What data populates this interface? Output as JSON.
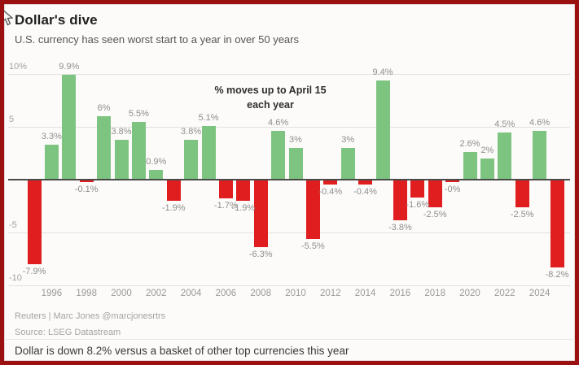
{
  "title": "Dollar's dive",
  "subtitle": "U.S. currency has seen worst start to a year in over 50 years",
  "annotation": {
    "line1": "% moves up to April 15",
    "line2": "each year"
  },
  "footer": {
    "byline": "Reuters | Marc Jones @marcjonesrtrs",
    "source": "Source: LSEG Datastream",
    "note": "Dollar is down 8.2% versus a basket of other top currencies this year"
  },
  "colors": {
    "positive": "#7cc480",
    "negative": "#e01e20",
    "frame_border": "#9b1111",
    "zero_axis": "#4a4a4a",
    "gridline": "#e2e1de",
    "label_gray": "#8f8e8c"
  },
  "chart_data": {
    "type": "bar",
    "title": "Dollar's dive",
    "subtitle": "U.S. currency has seen worst start to a year in over 50 years",
    "note": "% moves up to April 15 each year",
    "x": [
      1995,
      1996,
      1997,
      1998,
      1999,
      2000,
      2001,
      2002,
      2003,
      2004,
      2005,
      2006,
      2007,
      2008,
      2009,
      2010,
      2011,
      2012,
      2013,
      2014,
      2015,
      2016,
      2017,
      2018,
      2019,
      2020,
      2021,
      2022,
      2023,
      2024,
      2025
    ],
    "values": [
      -7.9,
      3.3,
      9.9,
      -0.1,
      6,
      3.8,
      5.5,
      0.9,
      -1.9,
      3.8,
      5.1,
      -1.7,
      -1.9,
      -6.3,
      4.6,
      3,
      -5.5,
      -0.4,
      3,
      -0.4,
      9.4,
      -3.8,
      -1.6,
      -2.5,
      -0.05,
      2.6,
      2,
      4.5,
      -2.5,
      4.6,
      -8.2
    ],
    "value_labels": [
      "-7.9%",
      "3.3%",
      "9.9%",
      "-0.1%",
      "6%",
      "3.8%",
      "5.5%",
      "0.9%",
      "-1.9%",
      "3.8%",
      "5.1%",
      "-1.7%",
      "-1.9%",
      "-6.3%",
      "4.6%",
      "3%",
      "-5.5%",
      "-0.4%",
      "3%",
      "-0.4%",
      "9.4%",
      "-3.8%",
      "-1.6%",
      "-2.5%",
      "-0%",
      "2.6%",
      "2%",
      "4.5%",
      "-2.5%",
      "4.6%",
      "-8.2%"
    ],
    "x_tick_labels": [
      "1996",
      "1998",
      "2000",
      "2002",
      "2004",
      "2006",
      "2008",
      "2010",
      "2012",
      "2014",
      "2016",
      "2018",
      "2020",
      "2022",
      "2024"
    ],
    "y_ticks": [
      {
        "value": 10,
        "label": "10%"
      },
      {
        "value": 5,
        "label": "5"
      },
      {
        "value": 0,
        "label": ""
      },
      {
        "value": -5,
        "label": "-5"
      },
      {
        "value": -10,
        "label": "-10"
      }
    ],
    "ylim": [
      -10.6,
      10.6
    ],
    "xlabel": "",
    "ylabel": "",
    "grid": true,
    "legend": false
  }
}
